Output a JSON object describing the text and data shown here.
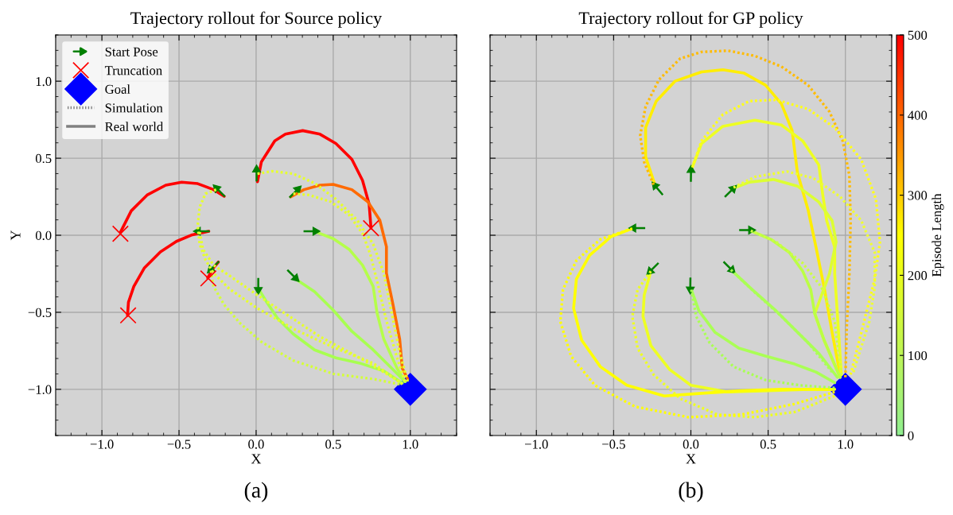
{
  "chart_data": [
    {
      "type": "line",
      "title": "Trajectory rollout for Source policy",
      "xlabel": "X",
      "ylabel": "Y",
      "annotations": [
        "(a)"
      ],
      "xlim": [
        -1.3,
        1.3
      ],
      "ylim": [
        -1.3,
        1.3
      ],
      "xticks": [
        {
          "value": -1.0,
          "label": "−1.0"
        },
        {
          "value": -0.5,
          "label": "−0.5"
        },
        {
          "value": 0,
          "label": "0.0"
        },
        {
          "value": 0.5,
          "label": "0.5"
        },
        {
          "value": 1.0,
          "label": "1.0"
        }
      ],
      "yticks": [
        {
          "value": -1.0,
          "label": "−1.0"
        },
        {
          "value": -0.5,
          "label": "−0.5"
        },
        {
          "value": 0,
          "label": "0.0"
        },
        {
          "value": 0.5,
          "label": "0.5"
        },
        {
          "value": 1.0,
          "label": "1.0"
        }
      ],
      "grid": true,
      "legend": "top left",
      "series": [
        {
          "type": "line",
          "line_style": "dotted",
          "color": "#e6ff2e",
          "x": [
            0.009,
            0.103,
            0.241,
            0.379,
            0.517,
            0.655,
            0.759,
            0.828,
            0.879,
            0.931,
            0.983
          ],
          "values": [
            0.399,
            0.416,
            0.399,
            0.338,
            0.235,
            0.098,
            -0.057,
            -0.246,
            -0.503,
            -0.761,
            -0.95
          ]
        },
        {
          "type": "line",
          "line_style": "dotted",
          "color": "#e6ff2e",
          "x": [
            0.241,
            0.345,
            0.483,
            0.603,
            0.69,
            0.741,
            0.793,
            0.845,
            0.914,
            0.966
          ],
          "values": [
            0.27,
            0.261,
            0.218,
            0.132,
            0.012,
            -0.125,
            -0.332,
            -0.555,
            -0.795,
            -0.95
          ]
        },
        {
          "type": "line",
          "line_style": "dotted",
          "color": "#e6ff2e",
          "x": [
            -0.259,
            -0.328,
            -0.366,
            -0.379,
            -0.366,
            -0.328,
            -0.276,
            -0.172,
            0,
            0.241,
            0.5,
            0.759,
            0.948
          ],
          "values": [
            0.296,
            0.27,
            0.184,
            0.064,
            -0.057,
            -0.16,
            -0.246,
            -0.349,
            -0.469,
            -0.607,
            -0.727,
            -0.83,
            -0.967
          ]
        },
        {
          "type": "line",
          "line_style": "dotted",
          "color": "#e6ff2e",
          "x": [
            -0.366,
            -0.345,
            -0.276,
            -0.172,
            0,
            0.207,
            0.414,
            0.672,
            0.931
          ],
          "values": [
            0.021,
            -0.091,
            -0.194,
            -0.263,
            -0.383,
            -0.521,
            -0.658,
            -0.796,
            -0.95
          ]
        },
        {
          "type": "line",
          "line_style": "dotted",
          "color": "#d4ff3a",
          "x": [
            -0.293,
            -0.276,
            -0.207,
            -0.103,
            0.034,
            0.241,
            0.5,
            0.759,
            0.931
          ],
          "values": [
            -0.229,
            -0.332,
            -0.452,
            -0.572,
            -0.692,
            -0.813,
            -0.899,
            -0.933,
            -0.967
          ]
        },
        {
          "type": "line",
          "line_style": "solid",
          "color": "#ff0000",
          "x": [
            -0.207,
            -0.276,
            -0.379,
            -0.483,
            -0.586,
            -0.707,
            -0.81,
            -0.879
          ],
          "values": [
            0.253,
            0.296,
            0.335,
            0.344,
            0.325,
            0.261,
            0.158,
            0.021
          ]
        },
        {
          "type": "line",
          "line_style": "solid",
          "color": "#ff0000",
          "x": [
            -0.307,
            -0.414,
            -0.517,
            -0.621,
            -0.724,
            -0.793,
            -0.828,
            -0.834
          ],
          "values": [
            0.026,
            0.003,
            -0.04,
            -0.108,
            -0.211,
            -0.332,
            -0.435,
            -0.521
          ]
        },
        {
          "type": "line",
          "line_style": "solid",
          "color": "#ff0000",
          "x": [
            -0.245,
            -0.276,
            -0.314
          ],
          "values": [
            -0.174,
            -0.211,
            -0.277
          ]
        },
        {
          "type": "line",
          "line_style": "solid",
          "color": "#ff0000",
          "x": [
            0.009,
            0.034,
            0.121,
            0.19,
            0.302,
            0.414,
            0.517,
            0.621,
            0.69,
            0.733,
            0.745
          ],
          "values": [
            0.347,
            0.476,
            0.613,
            0.656,
            0.679,
            0.656,
            0.596,
            0.493,
            0.356,
            0.201,
            0.046
          ]
        },
        {
          "type": "line",
          "line_style": "solid",
          "color": "#ff6a00",
          "x": [
            0.224,
            0.31,
            0.414,
            0.5,
            0.621,
            0.724,
            0.802,
            0.845,
            0.845,
            0.888,
            0.931,
            0.948,
            0.983
          ],
          "values": [
            0.249,
            0.296,
            0.325,
            0.33,
            0.296,
            0.218,
            0.098,
            -0.074,
            -0.246,
            -0.452,
            -0.675,
            -0.864,
            -0.933
          ]
        },
        {
          "type": "line",
          "line_style": "solid",
          "color": "#b5ff4a",
          "x": [
            0.388,
            0.5,
            0.603,
            0.69,
            0.759,
            0.784,
            0.828,
            0.914,
            0.966
          ],
          "values": [
            0.021,
            -0.022,
            -0.091,
            -0.194,
            -0.332,
            -0.503,
            -0.675,
            -0.864,
            -0.95
          ]
        },
        {
          "type": "line",
          "line_style": "solid",
          "color": "#a8ff50",
          "x": [
            0.25,
            0.379,
            0.5,
            0.621,
            0.759,
            0.897,
            0.966
          ],
          "values": [
            -0.28,
            -0.366,
            -0.486,
            -0.624,
            -0.744,
            -0.881,
            -0.95
          ]
        },
        {
          "type": "line",
          "line_style": "solid",
          "color": "#a8ff50",
          "x": [
            0.017,
            0.069,
            0.138,
            0.241,
            0.379,
            0.517,
            0.672,
            0.828,
            0.948
          ],
          "values": [
            -0.349,
            -0.435,
            -0.538,
            -0.641,
            -0.744,
            -0.796,
            -0.83,
            -0.881,
            -0.959
          ]
        },
        {
          "name": "Start Pose",
          "color": "#008000",
          "line_style": "solid",
          "x": [
            -0.207,
            -0.257,
            null,
            0.003,
            0.003,
            null,
            0.221,
            0.271,
            null,
            0.314,
            0.384,
            null,
            0.207,
            0.257,
            null,
            0.014,
            0.014,
            null,
            -0.245,
            -0.295,
            null,
            -0.307,
            -0.377
          ],
          "values": [
            0.256,
            0.306,
            null,
            0.356,
            0.426,
            null,
            0.249,
            0.299,
            null,
            0.026,
            0.026,
            null,
            -0.229,
            -0.279,
            null,
            -0.284,
            -0.354,
            null,
            -0.174,
            -0.224,
            null,
            0.026,
            0.026
          ]
        },
        {
          "type": "scatter",
          "name": "Truncation",
          "color": "#ff0000",
          "marker": "cross",
          "x": [
            -0.88,
            -0.83,
            -0.31,
            0.745
          ],
          "values": [
            0.01,
            -0.52,
            -0.28,
            0.046
          ]
        },
        {
          "type": "scatter",
          "name": "Goal",
          "color": "#0000ff",
          "marker": "diamond",
          "x": [
            1.0
          ],
          "values": [
            -1.0
          ]
        },
        {
          "name": "Simulation",
          "color": "#808080",
          "line_style": "dotted"
        },
        {
          "name": "Real world",
          "color": "#808080",
          "line_style": "solid"
        }
      ]
    },
    {
      "type": "line",
      "title": "Trajectory rollout for GP policy",
      "xlabel": "X",
      "annotations": [
        "(b)"
      ],
      "clabel": "Episode Length",
      "clim": [
        0,
        500
      ],
      "cticks": [
        0,
        100,
        200,
        300,
        400,
        500
      ],
      "colors": [
        "#90ee90",
        "#ffff00",
        "#ff0000"
      ],
      "xlim": [
        -1.3,
        1.3
      ],
      "ylim": [
        -1.3,
        1.3
      ],
      "tick_labels": "x",
      "xticks": [
        {
          "value": -1.0,
          "label": "−1.0"
        },
        {
          "value": -0.5,
          "label": "−0.5"
        },
        {
          "value": 0,
          "label": "0.0"
        },
        {
          "value": 0.5,
          "label": "0.5"
        },
        {
          "value": 1.0,
          "label": "1.0"
        }
      ],
      "yticks": [
        -1.0,
        -0.5,
        0,
        0.5,
        1.0
      ],
      "grid": true,
      "series": [
        {
          "type": "line",
          "line_style": "dotted",
          "color": "#ffbb00",
          "x": [
            -0.241,
            -0.302,
            -0.328,
            -0.293,
            -0.207,
            -0.069,
            0.069,
            0.241,
            0.414,
            0.586,
            0.759,
            0.897,
            0.983,
            1.026,
            1.034,
            1.026,
            1.009,
            1.0
          ],
          "values": [
            0.328,
            0.474,
            0.647,
            0.836,
            1.009,
            1.147,
            1.19,
            1.198,
            1.164,
            1.095,
            0.974,
            0.802,
            0.612,
            0.388,
            0.095,
            -0.25,
            -0.595,
            -0.922
          ]
        },
        {
          "type": "line",
          "line_style": "solid",
          "color": "#ffee00",
          "x": [
            -0.233,
            -0.293,
            -0.293,
            -0.224,
            -0.103,
            0.069,
            0.207,
            0.345,
            0.483,
            0.586,
            0.655,
            0.69,
            0.759,
            0.81,
            0.862,
            0.914,
            0.966
          ],
          "values": [
            0.328,
            0.509,
            0.698,
            0.871,
            1.0,
            1.06,
            1.074,
            1.052,
            0.974,
            0.853,
            0.681,
            0.405,
            0.164,
            -0.078,
            -0.336,
            -0.629,
            -0.905
          ]
        },
        {
          "type": "line",
          "line_style": "dotted",
          "color": "#ffff1a",
          "x": [
            0.009,
            0.069,
            0.207,
            0.379,
            0.552,
            0.759,
            0.931,
            1.103,
            1.198,
            1.224,
            1.19,
            1.121,
            1.034
          ],
          "values": [
            0.44,
            0.612,
            0.784,
            0.871,
            0.879,
            0.819,
            0.698,
            0.491,
            0.233,
            -0.043,
            -0.284,
            -0.56,
            -0.905
          ]
        },
        {
          "type": "line",
          "line_style": "solid",
          "color": "#eeff22",
          "x": [
            0.009,
            0.069,
            0.207,
            0.414,
            0.586,
            0.724,
            0.828,
            0.853,
            0.879,
            0.931,
            0.931,
            0.948,
            0.974
          ],
          "values": [
            0.44,
            0.595,
            0.707,
            0.747,
            0.716,
            0.612,
            0.457,
            0.267,
            0.095,
            -0.078,
            -0.25,
            -0.509,
            -0.905
          ]
        },
        {
          "type": "line",
          "line_style": "solid",
          "color": "#ddff33",
          "x": [
            0.267,
            0.379,
            0.534,
            0.69,
            0.828,
            0.914,
            0.94,
            0.897,
            0.802,
            0.862,
            0.966
          ],
          "values": [
            0.302,
            0.345,
            0.362,
            0.319,
            0.216,
            0.095,
            -0.043,
            -0.25,
            -0.509,
            -0.681,
            -0.922
          ]
        },
        {
          "type": "line",
          "line_style": "dotted",
          "color": "#eeff33",
          "x": [
            0.276,
            0.414,
            0.621,
            0.793,
            0.966,
            1.103,
            1.19,
            1.19,
            1.155,
            1.052
          ],
          "values": [
            0.31,
            0.379,
            0.414,
            0.371,
            0.25,
            0.095,
            -0.112,
            -0.336,
            -0.56,
            -0.888
          ]
        },
        {
          "type": "line",
          "line_style": "solid",
          "color": "#bbff44",
          "x": [
            0.388,
            0.517,
            0.638,
            0.724,
            0.776,
            0.802,
            0.862,
            0.966
          ],
          "values": [
            0.029,
            -0.026,
            -0.112,
            -0.233,
            -0.353,
            -0.509,
            -0.681,
            -0.922
          ]
        },
        {
          "type": "line",
          "line_style": "dotted",
          "color": "#ccff44",
          "x": [
            0.388,
            0.552,
            0.724,
            0.845,
            0.931,
            0.974
          ],
          "values": [
            0.029,
            -0.043,
            -0.181,
            -0.336,
            -0.56,
            -0.905
          ]
        },
        {
          "type": "line",
          "line_style": "solid",
          "color": "#aaff55",
          "x": [
            0.259,
            0.397,
            0.552,
            0.69,
            0.828,
            0.948
          ],
          "values": [
            -0.224,
            -0.353,
            -0.491,
            -0.629,
            -0.767,
            -0.922
          ]
        },
        {
          "type": "line",
          "line_style": "dotted",
          "color": "#aaff55",
          "x": [
            0.259,
            0.414,
            0.586,
            0.759,
            0.914
          ],
          "values": [
            -0.224,
            -0.371,
            -0.526,
            -0.698,
            -0.888
          ]
        },
        {
          "type": "line",
          "line_style": "solid",
          "color": "#aaff55",
          "x": [
            0,
            0.052,
            0.155,
            0.31,
            0.483,
            0.672,
            0.81,
            0.931
          ],
          "values": [
            -0.345,
            -0.491,
            -0.629,
            -0.733,
            -0.784,
            -0.836,
            -0.888,
            -0.957
          ]
        },
        {
          "type": "line",
          "line_style": "dotted",
          "color": "#aaff55",
          "x": [
            0.003,
            0.034,
            0.121,
            0.276,
            0.483,
            0.707,
            0.931
          ],
          "values": [
            -0.353,
            -0.526,
            -0.698,
            -0.853,
            -0.94,
            -0.974,
            -0.991
          ]
        },
        {
          "type": "line",
          "line_style": "solid",
          "color": "#eeff22",
          "x": [
            -0.259,
            -0.302,
            -0.31,
            -0.259,
            -0.138,
            0,
            0.241,
            0.5,
            0.759,
            0.931
          ],
          "values": [
            -0.233,
            -0.388,
            -0.526,
            -0.716,
            -0.871,
            -0.974,
            -1.017,
            -1.009,
            -1.0,
            -1.0
          ]
        },
        {
          "type": "line",
          "line_style": "dotted",
          "color": "#eeff22",
          "x": [
            -0.259,
            -0.345,
            -0.379,
            -0.345,
            -0.241,
            -0.069,
            0.172,
            0.414,
            0.672,
            0.931
          ],
          "values": [
            -0.233,
            -0.353,
            -0.526,
            -0.733,
            -0.905,
            -1.06,
            -1.164,
            -1.181,
            -1.147,
            -1.043
          ]
        },
        {
          "type": "line",
          "line_style": "solid",
          "color": "#ffff00",
          "x": [
            -0.371,
            -0.517,
            -0.655,
            -0.741,
            -0.759,
            -0.707,
            -0.586,
            -0.414,
            -0.172,
            0.069,
            0.328,
            0.586,
            0.914
          ],
          "values": [
            0.047,
            -0.009,
            -0.129,
            -0.284,
            -0.474,
            -0.681,
            -0.853,
            -0.974,
            -1.043,
            -1.026,
            -1.009,
            -1.0,
            -1.0
          ]
        },
        {
          "type": "line",
          "line_style": "dotted",
          "color": "#ffff00",
          "x": [
            -0.379,
            -0.586,
            -0.741,
            -0.828,
            -0.845,
            -0.776,
            -0.621,
            -0.362,
            -0.017,
            0.328,
            0.672,
            0.931
          ],
          "values": [
            0.043,
            -0.026,
            -0.164,
            -0.353,
            -0.56,
            -0.784,
            -0.974,
            -1.112,
            -1.181,
            -1.164,
            -1.095,
            -1.017
          ]
        },
        {
          "color": "#008000",
          "line_style": "solid",
          "x": [
            -0.186,
            -0.232,
            null,
            0.0,
            0.001,
            null,
            0.224,
            0.274,
            null,
            0.319,
            0.389,
            null,
            0.216,
            0.266,
            null,
            -0.003,
            -0.004,
            null,
            -0.214,
            -0.264,
            null,
            -0.302,
            -0.372
          ],
          "values": [
            0.267,
            0.322,
            null,
            0.353,
            0.423,
            null,
            0.253,
            0.303,
            null,
            0.034,
            0.034,
            null,
            -0.176,
            -0.226,
            null,
            -0.281,
            -0.351,
            null,
            -0.184,
            -0.234,
            null,
            0.047,
            0.047
          ]
        },
        {
          "type": "scatter",
          "color": "#0000ff",
          "marker": "diamond",
          "x": [
            1.0
          ],
          "values": [
            -1.0
          ]
        }
      ]
    }
  ]
}
